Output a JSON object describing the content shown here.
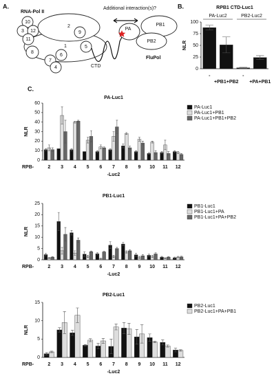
{
  "panel_labels": [
    "A.",
    "B.",
    "C."
  ],
  "diagram": {
    "title": "RNA-Pol II",
    "question": "Additional interaction(s)?",
    "subunits": [
      "10",
      "3",
      "12",
      "11",
      "2",
      "9",
      "1",
      "8",
      "5",
      "6",
      "7",
      "4"
    ],
    "ctd": "CTD",
    "polymerase": [
      "PA",
      "PB1",
      "PB2"
    ],
    "complex": "FluPol"
  },
  "chart_data": [
    {
      "type": "bar",
      "title": "RPB1 CTD-Luc1",
      "ylabel": "NLR",
      "group_labels": [
        "PA-Luc2",
        "PB2-Luc2"
      ],
      "categories": [
        "-",
        "+PB1+PB2",
        "-",
        "+PA+PB1"
      ],
      "values": [
        88,
        51,
        2,
        24
      ],
      "errors": [
        5,
        17,
        1,
        4
      ],
      "color": "#111111",
      "ylim": [
        0,
        100
      ],
      "yticks": [
        0,
        25,
        50,
        75,
        100
      ]
    },
    {
      "type": "bar",
      "title": "PA-Luc1",
      "ylabel": "NLR",
      "x_prefix": "RPB-",
      "xlabel": "-Luc2",
      "categories": [
        "2",
        "3",
        "4",
        "5",
        "6",
        "7",
        "8",
        "9",
        "10",
        "11",
        "12"
      ],
      "series": [
        {
          "name": "PA-Luc1",
          "color": "#111111",
          "values": [
            11,
            12,
            11,
            9,
            9,
            11,
            15,
            9,
            7,
            8,
            9
          ],
          "errors": [
            1,
            0,
            1,
            0,
            1,
            1,
            2,
            1,
            1,
            1,
            1
          ]
        },
        {
          "name": "PA-Luc1+PB1",
          "color": "#dddddd",
          "values": [
            13,
            47,
            40,
            21,
            14,
            25,
            28,
            22,
            19,
            16,
            8
          ],
          "errors": [
            3,
            9,
            1,
            3,
            2,
            5,
            1,
            2,
            1,
            5,
            1
          ]
        },
        {
          "name": "PA-Luc1+PB1+PB2",
          "color": "#666666",
          "values": [
            11,
            30,
            41,
            25,
            13,
            35,
            13,
            18,
            8,
            7,
            6
          ],
          "errors": [
            2,
            12,
            1,
            6,
            1,
            7,
            2,
            2,
            2,
            2,
            1
          ]
        }
      ],
      "ylim": [
        0,
        60
      ],
      "yticks": [
        0,
        10,
        20,
        30,
        40,
        50,
        60
      ]
    },
    {
      "type": "bar",
      "title": "PB1-Luc1",
      "ylabel": "NLR",
      "x_prefix": "RPB-",
      "xlabel": "-Luc2",
      "categories": [
        "2",
        "3",
        "4",
        "5",
        "6",
        "7",
        "8",
        "9",
        "10",
        "11",
        "12"
      ],
      "series": [
        {
          "name": "PB1-Luc1",
          "color": "#111111",
          "values": [
            2.3,
            17,
            12,
            2.5,
            2.7,
            6.5,
            7,
            2.2,
            2,
            1.2,
            0.9
          ],
          "errors": [
            0.5,
            4,
            1,
            1,
            0.5,
            1.5,
            0.7,
            0.7,
            0.5,
            0.3,
            0.3
          ]
        },
        {
          "name": "PB1-Luc1+PA",
          "color": "#dddddd",
          "values": [
            0.8,
            4,
            3,
            1.5,
            0.5,
            1.5,
            3.5,
            1,
            1.5,
            0.7,
            1.2
          ],
          "errors": [
            0.3,
            1.5,
            1,
            0.5,
            0.3,
            0.5,
            0.5,
            0.5,
            0.5,
            0.2,
            0.3
          ]
        },
        {
          "name": "PB1-Luc1+PA+PB2",
          "color": "#666666",
          "values": [
            1.2,
            11.3,
            8.7,
            3.6,
            3.5,
            5,
            4,
            1.8,
            2.6,
            1.2,
            1.3
          ],
          "errors": [
            0.2,
            3,
            1,
            0.3,
            0.3,
            0.5,
            0.5,
            0.5,
            0.5,
            0.2,
            0.3
          ]
        }
      ],
      "ylim": [
        0,
        25
      ],
      "yticks": [
        0,
        5,
        10,
        15,
        20,
        25
      ]
    },
    {
      "type": "bar",
      "title": "PB2-Luc1",
      "ylabel": "NLR",
      "x_prefix": "RPB-",
      "xlabel": "-Luc2",
      "categories": [
        "2",
        "3",
        "4",
        "5",
        "6",
        "7",
        "8",
        "9",
        "10",
        "11",
        "12"
      ],
      "series": [
        {
          "name": "PB2-Luc1",
          "color": "#111111",
          "values": [
            1,
            7.5,
            6.7,
            3.3,
            3.1,
            3,
            8,
            5.6,
            5.4,
            4.1,
            2
          ],
          "errors": [
            0.3,
            0.6,
            0.7,
            0.2,
            0.7,
            2,
            1.5,
            2,
            1,
            0.7,
            0.5
          ]
        },
        {
          "name": "PB2-Luc1+PA+PB1",
          "color": "#dddddd",
          "values": [
            1.5,
            9.5,
            11.5,
            4.7,
            4.5,
            8.3,
            7.8,
            6.4,
            4.2,
            3.1,
            1.9
          ],
          "errors": [
            0.2,
            3,
            2,
            0.4,
            0.7,
            0.8,
            1.5,
            2.5,
            0.2,
            0.3,
            0.2
          ]
        }
      ],
      "ylim": [
        0,
        15
      ],
      "yticks": [
        0,
        5,
        10,
        15
      ]
    }
  ]
}
